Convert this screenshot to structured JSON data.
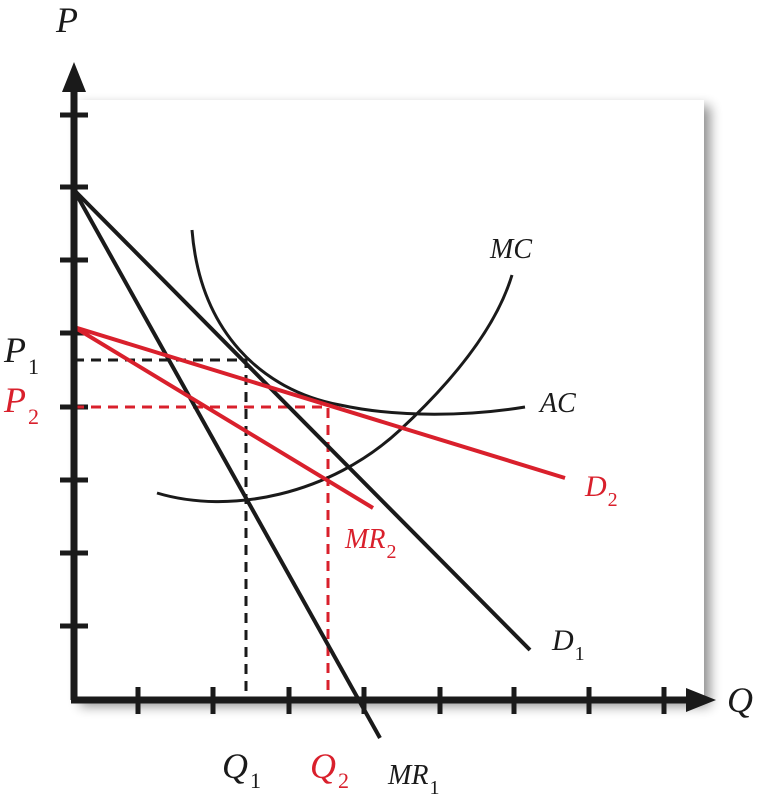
{
  "axes": {
    "y_label": "P",
    "x_label": "Q"
  },
  "colors": {
    "black": "#1a1a1a",
    "red": "#d9202c",
    "panel": "#ffffff"
  },
  "curves": {
    "MC": {
      "main": "MC",
      "sub": ""
    },
    "AC": {
      "main": "AC",
      "sub": ""
    },
    "D1": {
      "main": "D",
      "sub": "1"
    },
    "MR1": {
      "main": "MR",
      "sub": "1"
    },
    "D2": {
      "main": "D",
      "sub": "2"
    },
    "MR2": {
      "main": "MR",
      "sub": "2"
    }
  },
  "levels": {
    "P1": {
      "main": "P",
      "sub": "1"
    },
    "P2": {
      "main": "P",
      "sub": "2"
    },
    "Q1": {
      "main": "Q",
      "sub": "1"
    },
    "Q2": {
      "main": "Q",
      "sub": "2"
    }
  }
}
